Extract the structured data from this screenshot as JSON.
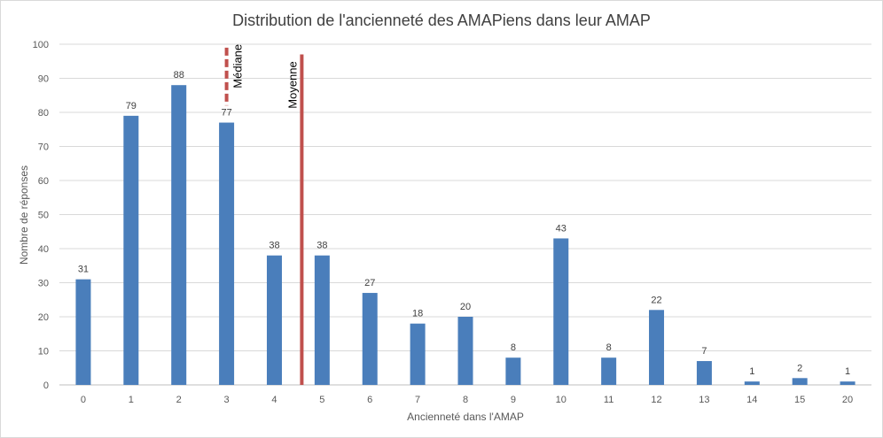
{
  "chart_data": {
    "type": "bar",
    "title": "Distribution de l'ancienneté des AMAPiens dans leur AMAP",
    "xlabel": "Ancienneté dans l'AMAP",
    "ylabel": "Nombre de réponses",
    "categories": [
      "0",
      "1",
      "2",
      "3",
      "4",
      "5",
      "6",
      "7",
      "8",
      "9",
      "10",
      "11",
      "12",
      "13",
      "14",
      "15",
      "20"
    ],
    "values": [
      31,
      79,
      88,
      77,
      38,
      38,
      27,
      18,
      20,
      8,
      43,
      8,
      22,
      7,
      1,
      2,
      1
    ],
    "ylim": [
      0,
      100
    ],
    "yticks": [
      0,
      10,
      20,
      30,
      40,
      50,
      60,
      70,
      80,
      90,
      100
    ],
    "grid": true,
    "legend": "none",
    "bar_color": "#4a7ebb",
    "markers": [
      {
        "label": "Médiane",
        "position": 3,
        "style": "dashed",
        "color": "#c0504d"
      },
      {
        "label": "Moyenne",
        "position": 4.5,
        "style": "solid",
        "color": "#c0504d"
      }
    ]
  }
}
